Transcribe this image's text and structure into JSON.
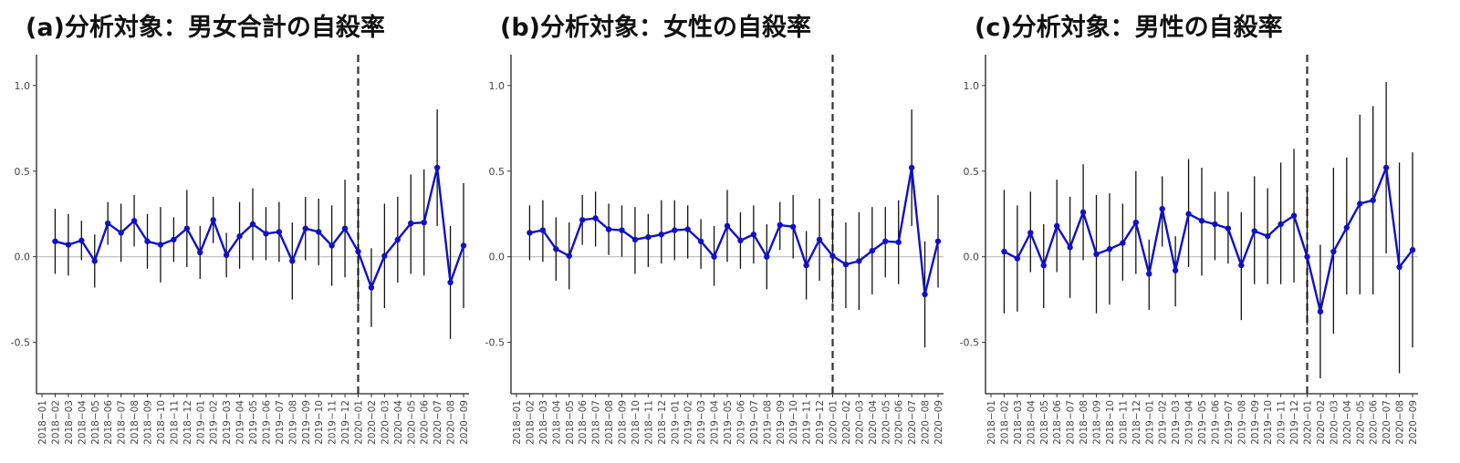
{
  "chart_data": [
    {
      "type": "line",
      "title": "(a)分析対象：男女合計の自殺率",
      "xlabel": "",
      "ylabel": "",
      "categories": [
        "2018−01",
        "2018−02",
        "2018−03",
        "2018−04",
        "2018−05",
        "2018−06",
        "2018−07",
        "2018−08",
        "2018−09",
        "2018−10",
        "2018−11",
        "2018−12",
        "2019−01",
        "2019−02",
        "2019−03",
        "2019−04",
        "2019−05",
        "2019−06",
        "2019−07",
        "2019−08",
        "2019−09",
        "2019−10",
        "2019−11",
        "2019−12",
        "2020−01",
        "2020−02",
        "2020−03",
        "2020−04",
        "2020−05",
        "2020−06",
        "2020−07",
        "2020−08",
        "2020−09"
      ],
      "yticks": [
        "-0.5",
        "0.0",
        "0.5",
        "1.0"
      ],
      "ylim": [
        -0.8,
        1.18
      ],
      "reference_line": 0,
      "vline_category": "2020−01",
      "series": [
        {
          "color": "#1010c8",
          "values": [
            null,
            0.09,
            0.07,
            0.095,
            -0.025,
            0.195,
            0.14,
            0.21,
            0.09,
            0.07,
            0.1,
            0.165,
            0.025,
            0.215,
            0.01,
            0.12,
            0.19,
            0.135,
            0.145,
            -0.025,
            0.165,
            0.145,
            0.065,
            0.165,
            0.03,
            -0.18,
            0.005,
            0.1,
            0.195,
            0.2,
            0.52,
            -0.15,
            0.065
          ],
          "lower": [
            null,
            -0.1,
            -0.11,
            -0.02,
            -0.18,
            0.07,
            -0.03,
            0.06,
            -0.07,
            -0.15,
            -0.03,
            -0.06,
            -0.13,
            0.08,
            -0.12,
            -0.07,
            -0.02,
            -0.02,
            -0.03,
            -0.25,
            -0.02,
            -0.05,
            -0.17,
            -0.12,
            -0.27,
            -0.41,
            -0.3,
            -0.15,
            -0.1,
            -0.11,
            0.18,
            -0.48,
            -0.3
          ],
          "upper": [
            null,
            0.28,
            0.25,
            0.21,
            0.13,
            0.32,
            0.31,
            0.36,
            0.25,
            0.29,
            0.23,
            0.39,
            0.18,
            0.35,
            0.14,
            0.32,
            0.4,
            0.29,
            0.32,
            0.2,
            0.35,
            0.34,
            0.3,
            0.45,
            0.33,
            0.05,
            0.31,
            0.35,
            0.48,
            0.51,
            0.86,
            0.18,
            0.43
          ]
        }
      ]
    },
    {
      "type": "line",
      "title": "(b)分析対象：女性の自殺率",
      "xlabel": "",
      "ylabel": "",
      "categories": [
        "2018−01",
        "2018−02",
        "2018−03",
        "2018−04",
        "2018−05",
        "2018−06",
        "2018−07",
        "2018−08",
        "2018−09",
        "2018−10",
        "2018−11",
        "2018−12",
        "2019−01",
        "2019−02",
        "2019−03",
        "2019−04",
        "2019−05",
        "2019−06",
        "2019−07",
        "2019−08",
        "2019−09",
        "2019−10",
        "2019−11",
        "2019−12",
        "2020−01",
        "2020−02",
        "2020−03",
        "2020−04",
        "2020−05",
        "2020−06",
        "2020−07",
        "2020−08",
        "2020−09"
      ],
      "yticks": [
        "-0.5",
        "0.0",
        "0.5",
        "1.0"
      ],
      "ylim": [
        -0.8,
        1.18
      ],
      "reference_line": 0,
      "vline_category": "2020−01",
      "series": [
        {
          "color": "#1010c8",
          "values": [
            null,
            0.14,
            0.155,
            0.045,
            0.005,
            0.215,
            0.225,
            0.16,
            0.155,
            0.1,
            0.115,
            0.13,
            0.155,
            0.16,
            0.09,
            0.0,
            0.18,
            0.095,
            0.13,
            0.0,
            0.185,
            0.175,
            -0.05,
            0.1,
            0.005,
            -0.045,
            -0.025,
            0.035,
            0.09,
            0.085,
            0.52,
            -0.22,
            0.09
          ],
          "lower": [
            null,
            -0.02,
            -0.03,
            -0.14,
            -0.19,
            0.07,
            0.06,
            0.01,
            0.0,
            -0.1,
            -0.06,
            -0.04,
            -0.02,
            -0.01,
            -0.07,
            -0.17,
            -0.03,
            -0.07,
            -0.04,
            -0.19,
            0.04,
            -0.01,
            -0.25,
            -0.14,
            -0.27,
            -0.3,
            -0.31,
            -0.22,
            -0.12,
            -0.16,
            0.18,
            -0.53,
            -0.18
          ],
          "upper": [
            null,
            0.3,
            0.33,
            0.23,
            0.2,
            0.36,
            0.38,
            0.31,
            0.3,
            0.29,
            0.25,
            0.33,
            0.33,
            0.3,
            0.22,
            0.18,
            0.39,
            0.26,
            0.3,
            0.19,
            0.32,
            0.36,
            0.15,
            0.34,
            0.28,
            0.2,
            0.26,
            0.29,
            0.29,
            0.33,
            0.86,
            0.09,
            0.36
          ]
        }
      ]
    },
    {
      "type": "line",
      "title": "(c)分析対象：男性の自殺率",
      "xlabel": "",
      "ylabel": "",
      "categories": [
        "2018−01",
        "2018−02",
        "2018−03",
        "2018−04",
        "2018−05",
        "2018−06",
        "2018−07",
        "2018−08",
        "2018−09",
        "2018−10",
        "2018−11",
        "2018−12",
        "2019−01",
        "2019−02",
        "2019−03",
        "2019−04",
        "2019−05",
        "2019−06",
        "2019−07",
        "2019−08",
        "2019−09",
        "2019−10",
        "2019−11",
        "2019−12",
        "2020−01",
        "2020−02",
        "2020−03",
        "2020−04",
        "2020−05",
        "2020−06",
        "2020−07",
        "2020−08",
        "2020−09"
      ],
      "yticks": [
        "-0.5",
        "0.0",
        "0.5",
        "1.0"
      ],
      "ylim": [
        -0.8,
        1.18
      ],
      "reference_line": 0,
      "vline_category": "2020−01",
      "series": [
        {
          "color": "#1010c8",
          "values": [
            null,
            0.03,
            -0.01,
            0.14,
            -0.05,
            0.18,
            0.055,
            0.26,
            0.015,
            0.045,
            0.08,
            0.2,
            -0.1,
            0.28,
            -0.08,
            0.25,
            0.21,
            0.19,
            0.165,
            -0.05,
            0.15,
            0.12,
            0.19,
            0.24,
            0.0,
            -0.32,
            0.03,
            0.17,
            0.31,
            0.33,
            0.52,
            -0.06,
            0.04
          ],
          "lower": [
            null,
            -0.33,
            -0.32,
            -0.09,
            -0.3,
            -0.09,
            -0.24,
            -0.02,
            -0.33,
            -0.28,
            -0.14,
            -0.1,
            -0.31,
            0.06,
            -0.29,
            -0.06,
            -0.11,
            -0.02,
            -0.04,
            -0.37,
            -0.16,
            -0.16,
            -0.16,
            -0.15,
            -0.4,
            -0.71,
            -0.45,
            -0.22,
            -0.22,
            -0.22,
            0.02,
            -0.68,
            -0.53
          ],
          "upper": [
            null,
            0.39,
            0.3,
            0.38,
            0.19,
            0.45,
            0.35,
            0.54,
            0.36,
            0.37,
            0.31,
            0.5,
            0.1,
            0.47,
            0.12,
            0.57,
            0.52,
            0.38,
            0.38,
            0.26,
            0.47,
            0.4,
            0.55,
            0.63,
            0.4,
            0.07,
            0.52,
            0.58,
            0.83,
            0.88,
            1.02,
            0.55,
            0.61
          ]
        }
      ]
    }
  ]
}
